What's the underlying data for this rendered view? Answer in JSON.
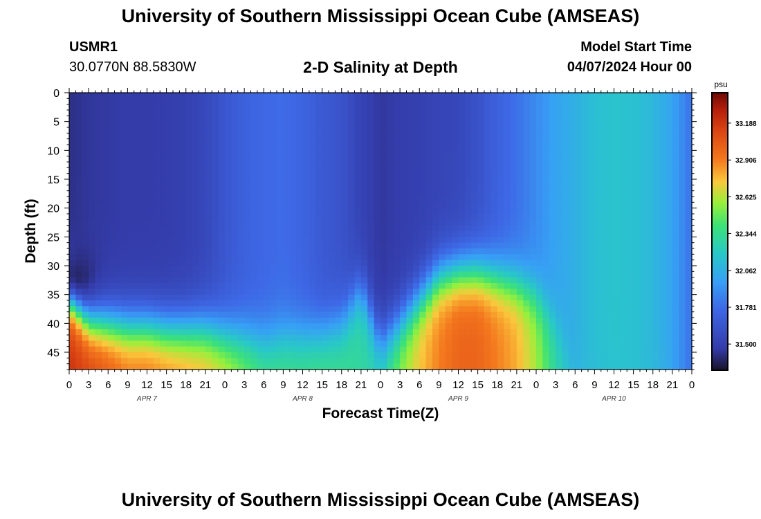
{
  "header": {
    "title": "University of Southern Mississippi Ocean Cube (AMSEAS)",
    "station_id": "USMR1",
    "station_coords": "30.0770N  88.5830W",
    "subtitle": "2-D Salinity at Depth",
    "model_start_label": "Model Start Time",
    "model_start_value": "04/07/2024 Hour 00"
  },
  "footer": {
    "title": "University of Southern Mississippi Ocean Cube (AMSEAS)"
  },
  "chart_data": {
    "type": "heatmap",
    "ylabel": "Depth (ft)",
    "xlabel": "Forecast Time(Z)",
    "x_unit": "hours since model start",
    "xlim": [
      0,
      96
    ],
    "ylim": [
      0,
      48
    ],
    "x_ticks": [
      0,
      3,
      6,
      9,
      12,
      15,
      18,
      21,
      24,
      27,
      30,
      33,
      36,
      39,
      42,
      45,
      48,
      51,
      54,
      57,
      60,
      63,
      66,
      69,
      72,
      75,
      78,
      81,
      84,
      87,
      90,
      93,
      96
    ],
    "x_tick_labels": [
      "0",
      "3",
      "6",
      "9",
      "12",
      "15",
      "18",
      "21",
      "0",
      "3",
      "6",
      "9",
      "12",
      "15",
      "18",
      "21",
      "0",
      "3",
      "6",
      "9",
      "12",
      "15",
      "18",
      "21",
      "0",
      "3",
      "6",
      "9",
      "12",
      "15",
      "18",
      "21",
      "0"
    ],
    "date_labels": [
      {
        "x": 12,
        "text": "APR 7"
      },
      {
        "x": 36,
        "text": "APR 8"
      },
      {
        "x": 60,
        "text": "APR 9"
      },
      {
        "x": 84,
        "text": "APR 10"
      }
    ],
    "y_ticks": [
      0,
      5,
      10,
      15,
      20,
      25,
      30,
      35,
      40,
      45
    ],
    "colorbar": {
      "unit": "psu",
      "range": [
        31.3,
        33.42
      ],
      "ticks": [
        31.5,
        31.781,
        32.062,
        32.344,
        32.625,
        32.906,
        33.188
      ],
      "tick_labels": [
        "31.500",
        "31.781",
        "32.062",
        "32.344",
        "32.625",
        "32.906",
        "33.188"
      ]
    },
    "salinity_profile": {
      "x": [
        0,
        3,
        6,
        9,
        12,
        15,
        18,
        21,
        24,
        27,
        30,
        33,
        36,
        39,
        42,
        45,
        48,
        51,
        54,
        57,
        60,
        63,
        66,
        69,
        72,
        75,
        78,
        81,
        84,
        87,
        90,
        93,
        96
      ],
      "surface_psu": [
        31.42,
        31.45,
        31.46,
        31.47,
        31.47,
        31.48,
        31.5,
        31.55,
        31.65,
        31.72,
        31.76,
        31.78,
        31.74,
        31.67,
        31.63,
        31.52,
        31.45,
        31.48,
        31.5,
        31.53,
        31.55,
        31.62,
        31.72,
        31.8,
        31.9,
        32.0,
        32.06,
        32.14,
        32.17,
        32.15,
        32.1,
        32.0,
        31.8
      ],
      "bottom_psu": [
        33.2,
        33.15,
        33.05,
        32.95,
        32.95,
        32.9,
        32.85,
        32.8,
        32.7,
        32.55,
        32.4,
        32.38,
        32.38,
        32.38,
        32.35,
        32.3,
        32.25,
        32.55,
        32.75,
        32.9,
        33.0,
        33.0,
        32.9,
        32.8,
        32.6,
        32.3,
        32.1,
        32.12,
        32.15,
        32.15,
        32.12,
        32.0,
        31.8
      ],
      "halocline_depth_ft": [
        35,
        39.5,
        40,
        40.5,
        40.5,
        41,
        41,
        41,
        42,
        42.5,
        43,
        42,
        42,
        41.5,
        40,
        34,
        43,
        40,
        36,
        32,
        31,
        31,
        32,
        33,
        35,
        40,
        48,
        48,
        48,
        48,
        48,
        48,
        48
      ],
      "low_salinity_core": {
        "x": 0,
        "depth_ft": 33,
        "psu": 31.3
      }
    }
  }
}
